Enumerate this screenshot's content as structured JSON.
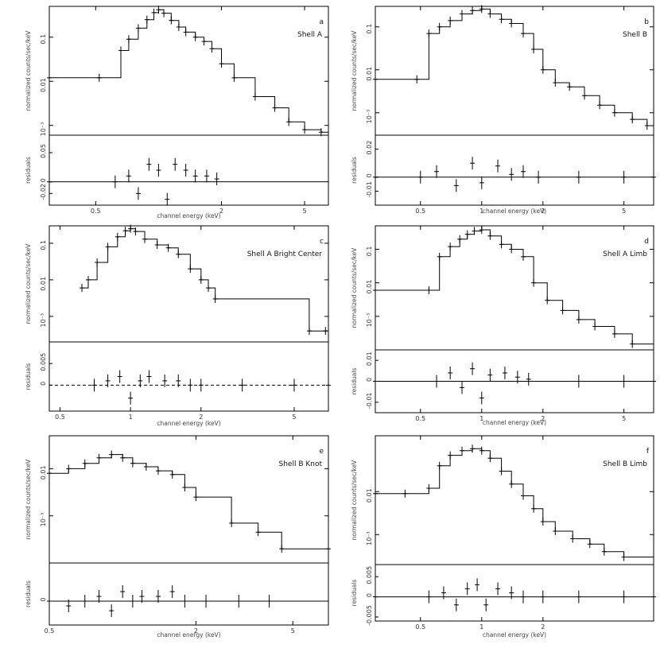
{
  "chart_data": [
    {
      "panel": "a",
      "type": "line",
      "title": "Shell A",
      "ylabel": "normalized counts/sec/keV",
      "xlabel": "channel energy (keV)",
      "resid_label": "residuals",
      "xlog": true,
      "ylog": true,
      "xlim": [
        0.3,
        6.5
      ],
      "ylim": [
        0.0006,
        0.5
      ],
      "x_ticks": [
        {
          "v": 0.5,
          "t": "0.5"
        },
        {
          "v": 2,
          "t": "2"
        },
        {
          "v": 5,
          "t": "5"
        }
      ],
      "y_ticks": [
        {
          "v": 0.1,
          "t": "0.1"
        },
        {
          "v": 0.01,
          "t": "0.01"
        },
        {
          "v": 0.001,
          "t": "10⁻³"
        }
      ],
      "resid_ylim": [
        -0.04,
        0.08
      ],
      "resid_ticks": [
        {
          "v": 0.05,
          "t": "0.05"
        },
        {
          "v": 0,
          "t": "0"
        },
        {
          "v": -0.02,
          "t": "-0.02"
        }
      ],
      "resid_dashed": false,
      "x": [
        0.3,
        0.52,
        0.66,
        0.72,
        0.8,
        0.88,
        0.95,
        1.0,
        1.06,
        1.15,
        1.25,
        1.35,
        1.5,
        1.65,
        1.8,
        2.0,
        2.3,
        2.9,
        3.6,
        4.2,
        5.0,
        6.0
      ],
      "y": [
        0.012,
        0.012,
        0.05,
        0.09,
        0.16,
        0.25,
        0.36,
        0.42,
        0.35,
        0.24,
        0.17,
        0.13,
        0.1,
        0.08,
        0.055,
        0.025,
        0.012,
        0.0045,
        0.0025,
        0.0012,
        0.0008,
        0.0007
      ],
      "resid_x": [
        0.3,
        0.62,
        0.72,
        0.8,
        0.9,
        1.0,
        1.1,
        1.2,
        1.35,
        1.5,
        1.7,
        1.9
      ],
      "resid_y": [
        0.0,
        0.0,
        0.01,
        -0.02,
        0.03,
        0.02,
        -0.03,
        0.03,
        0.02,
        0.01,
        0.01,
        0.005
      ]
    },
    {
      "panel": "b",
      "type": "line",
      "title": "Shell B",
      "ylabel": "normalized counts/sec/keV",
      "xlabel": "channel energy (keV)",
      "resid_label": "residuals",
      "xlog": true,
      "ylog": true,
      "xlim": [
        0.3,
        7.0
      ],
      "ylim": [
        0.0003,
        0.3
      ],
      "x_ticks": [
        {
          "v": 0.5,
          "t": "0.5"
        },
        {
          "v": 1,
          "t": "1"
        },
        {
          "v": 2,
          "t": "2"
        },
        {
          "v": 5,
          "t": "5"
        }
      ],
      "y_ticks": [
        {
          "v": 0.1,
          "t": "0.1"
        },
        {
          "v": 0.01,
          "t": "0.01"
        },
        {
          "v": 0.001,
          "t": "10⁻³"
        }
      ],
      "resid_ylim": [
        -0.02,
        0.03
      ],
      "resid_ticks": [
        {
          "v": 0.02,
          "t": "0.02"
        },
        {
          "v": 0,
          "t": "0"
        },
        {
          "v": -0.01,
          "t": "-0.01"
        }
      ],
      "resid_dashed": false,
      "x": [
        0.3,
        0.48,
        0.55,
        0.62,
        0.7,
        0.8,
        0.9,
        1.0,
        1.1,
        1.25,
        1.4,
        1.6,
        1.8,
        2.0,
        2.3,
        2.7,
        3.2,
        3.8,
        4.5,
        5.5,
        6.5
      ],
      "y": [
        0.006,
        0.006,
        0.07,
        0.1,
        0.14,
        0.2,
        0.24,
        0.26,
        0.2,
        0.15,
        0.12,
        0.07,
        0.03,
        0.01,
        0.005,
        0.004,
        0.0025,
        0.0015,
        0.001,
        0.0007,
        0.0005
      ],
      "resid_x": [
        0.3,
        0.5,
        0.6,
        0.75,
        0.9,
        1.0,
        1.2,
        1.4,
        1.6,
        1.9,
        3.0,
        5.0,
        7.0
      ],
      "resid_y": [
        0.0,
        0.0,
        0.004,
        -0.006,
        0.01,
        -0.004,
        0.008,
        0.002,
        0.004,
        0.0,
        0.0,
        0.0,
        0.0
      ]
    },
    {
      "panel": "c",
      "type": "line",
      "title": "Shell A Bright Center",
      "ylabel": "normalized counts/sec/keV",
      "xlabel": "channel energy (keV)",
      "resid_label": "residuals",
      "xlog": true,
      "ylog": true,
      "xlim": [
        0.45,
        7.0
      ],
      "ylim": [
        0.0002,
        0.3
      ],
      "x_ticks": [
        {
          "v": 0.5,
          "t": "0.5"
        },
        {
          "v": 1,
          "t": "1"
        },
        {
          "v": 2,
          "t": "2"
        },
        {
          "v": 5,
          "t": "5"
        }
      ],
      "y_ticks": [
        {
          "v": 0.1,
          "t": "0.1"
        },
        {
          "v": 0.01,
          "t": "0.01"
        },
        {
          "v": 0.001,
          "t": "10⁻³"
        }
      ],
      "resid_ylim": [
        -0.006,
        0.01
      ],
      "resid_ticks": [
        {
          "v": 0.005,
          "t": "0.005"
        },
        {
          "v": 0,
          "t": "0"
        }
      ],
      "resid_dashed": true,
      "x": [
        0.62,
        0.66,
        0.72,
        0.8,
        0.88,
        0.95,
        1.0,
        1.05,
        1.15,
        1.3,
        1.45,
        1.6,
        1.8,
        2.0,
        2.15,
        2.3,
        5.8,
        6.8
      ],
      "y": [
        0.006,
        0.01,
        0.03,
        0.08,
        0.15,
        0.22,
        0.25,
        0.21,
        0.13,
        0.09,
        0.075,
        0.05,
        0.02,
        0.01,
        0.006,
        0.003,
        0.0004,
        0.0004
      ],
      "resid_x": [
        0.7,
        0.8,
        0.9,
        1.0,
        1.1,
        1.2,
        1.4,
        1.6,
        1.8,
        2.0,
        3.0,
        5.0,
        7.0
      ],
      "resid_y": [
        0.0,
        0.001,
        0.002,
        -0.003,
        0.001,
        0.002,
        0.001,
        0.001,
        0.0,
        0.0,
        0.0,
        0.0,
        0.0
      ]
    },
    {
      "panel": "d",
      "type": "line",
      "title": "Shell A Limb",
      "ylabel": "normalized counts/sec/keV",
      "xlabel": "channel energy (keV)",
      "resid_label": "residuals",
      "xlog": true,
      "ylog": true,
      "xlim": [
        0.3,
        7.0
      ],
      "ylim": [
        0.0001,
        0.5
      ],
      "x_ticks": [
        {
          "v": 0.5,
          "t": "0.5"
        },
        {
          "v": 1,
          "t": "1"
        },
        {
          "v": 2,
          "t": "2"
        },
        {
          "v": 5,
          "t": "5"
        }
      ],
      "y_ticks": [
        {
          "v": 0.1,
          "t": "0.1"
        },
        {
          "v": 0.01,
          "t": "0.01"
        },
        {
          "v": 0.001,
          "t": "10⁻³"
        }
      ],
      "resid_ylim": [
        -0.015,
        0.015
      ],
      "resid_ticks": [
        {
          "v": 0.01,
          "t": "0.01"
        },
        {
          "v": 0,
          "t": "0"
        },
        {
          "v": -0.01,
          "t": "-0.01"
        }
      ],
      "resid_dashed": false,
      "x": [
        0.3,
        0.55,
        0.62,
        0.7,
        0.78,
        0.85,
        0.92,
        1.0,
        1.1,
        1.25,
        1.4,
        1.6,
        1.8,
        2.1,
        2.5,
        3.0,
        3.6,
        4.5,
        5.5
      ],
      "y": [
        0.006,
        0.006,
        0.06,
        0.12,
        0.2,
        0.28,
        0.35,
        0.38,
        0.25,
        0.14,
        0.1,
        0.06,
        0.01,
        0.003,
        0.0015,
        0.0008,
        0.0005,
        0.0003,
        0.00015
      ],
      "resid_x": [
        0.3,
        0.6,
        0.7,
        0.8,
        0.9,
        1.0,
        1.1,
        1.3,
        1.5,
        1.7,
        3.0,
        5.0,
        7.0
      ],
      "resid_y": [
        0.0,
        0.0,
        0.004,
        -0.003,
        0.006,
        -0.008,
        0.003,
        0.004,
        0.002,
        0.001,
        0.0,
        0.0,
        0.0
      ]
    },
    {
      "panel": "e",
      "type": "line",
      "title": "Shell B Knot",
      "ylabel": "normalized counts/sec/keV",
      "xlabel": "channel energy (keV)",
      "resid_label": "residuals",
      "xlog": true,
      "ylog": true,
      "xlim": [
        0.5,
        7.0
      ],
      "ylim": [
        0.0001,
        0.05
      ],
      "x_ticks": [
        {
          "v": 0.5,
          "t": "0.5"
        },
        {
          "v": 2,
          "t": "2"
        },
        {
          "v": 5,
          "t": "5"
        }
      ],
      "y_ticks": [
        {
          "v": 0.01,
          "t": "0.01"
        },
        {
          "v": 0.001,
          "t": "10⁻³"
        }
      ],
      "resid_ylim": [
        -0.005,
        0.008
      ],
      "resid_ticks": [
        {
          "v": 0,
          "t": "0"
        }
      ],
      "resid_dashed": false,
      "x": [
        0.5,
        0.6,
        0.7,
        0.8,
        0.9,
        1.0,
        1.1,
        1.25,
        1.4,
        1.6,
        1.8,
        2.0,
        2.8,
        3.6,
        4.5,
        7.0
      ],
      "y": [
        0.008,
        0.01,
        0.013,
        0.017,
        0.02,
        0.017,
        0.013,
        0.011,
        0.009,
        0.0075,
        0.004,
        0.0025,
        0.0007,
        0.00045,
        0.0002,
        0.0002
      ],
      "resid_x": [
        0.5,
        0.6,
        0.7,
        0.8,
        0.9,
        1.0,
        1.1,
        1.2,
        1.4,
        1.6,
        1.8,
        2.2,
        3.0,
        4.0
      ],
      "resid_y": [
        0.0,
        -0.001,
        0.0,
        0.001,
        -0.002,
        0.002,
        0.0,
        0.001,
        0.001,
        0.002,
        0.0,
        0.0,
        0.0,
        0.0
      ]
    },
    {
      "panel": "f",
      "type": "line",
      "title": "Shell B Limb",
      "ylabel": "normalized counts/sec/keV",
      "xlabel": "channel energy (keV)",
      "resid_label": "residuals",
      "xlog": true,
      "ylog": true,
      "xlim": [
        0.3,
        7.0
      ],
      "ylim": [
        0.0002,
        0.2
      ],
      "x_ticks": [
        {
          "v": 0.5,
          "t": "0.5"
        },
        {
          "v": 1,
          "t": "1"
        },
        {
          "v": 2,
          "t": "2"
        }
      ],
      "y_ticks": [
        {
          "v": 0.01,
          "t": "0.01"
        },
        {
          "v": 0.001,
          "t": "10⁻³"
        }
      ],
      "resid_ylim": [
        -0.006,
        0.008
      ],
      "resid_ticks": [
        {
          "v": 0.005,
          "t": "0.005"
        },
        {
          "v": 0,
          "t": "0"
        },
        {
          "v": -0.005,
          "t": "-0.005"
        }
      ],
      "resid_dashed": false,
      "x": [
        0.3,
        0.42,
        0.55,
        0.62,
        0.7,
        0.8,
        0.9,
        1.0,
        1.1,
        1.25,
        1.4,
        1.6,
        1.8,
        2.0,
        2.3,
        2.8,
        3.4,
        4.0,
        5.0
      ],
      "y": [
        0.009,
        0.009,
        0.012,
        0.04,
        0.07,
        0.09,
        0.1,
        0.09,
        0.06,
        0.03,
        0.015,
        0.008,
        0.004,
        0.002,
        0.0012,
        0.0008,
        0.0006,
        0.0004,
        0.0003
      ],
      "resid_x": [
        0.3,
        0.55,
        0.65,
        0.75,
        0.85,
        0.95,
        1.05,
        1.2,
        1.4,
        1.6,
        2.0,
        3.0,
        5.0,
        7.0
      ],
      "resid_y": [
        0.0,
        0.0,
        0.001,
        -0.002,
        0.002,
        0.003,
        -0.002,
        0.002,
        0.001,
        0.0,
        0.0,
        0.0,
        0.0,
        0.0
      ]
    }
  ]
}
